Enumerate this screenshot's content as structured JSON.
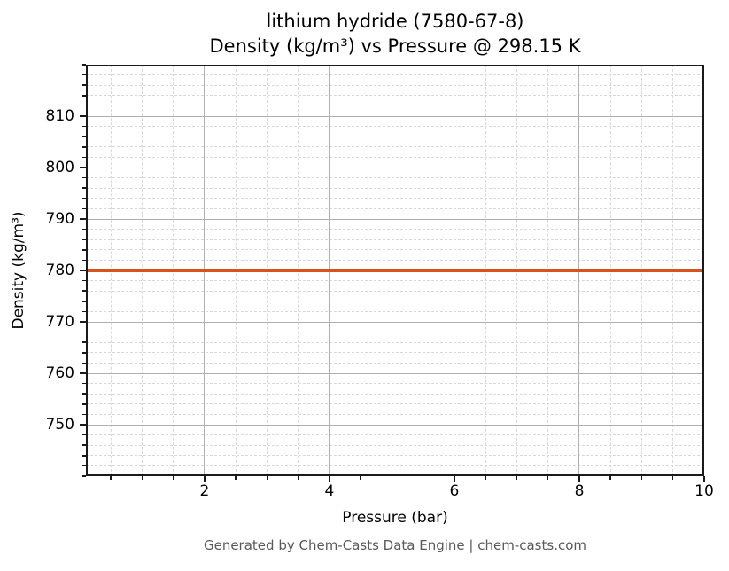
{
  "chart_data": {
    "type": "line",
    "title_line1": "lithium hydride (7580-67-8)",
    "title_line2": "Density (kg/m³) vs Pressure @ 298.15 K",
    "xlabel": "Pressure (bar)",
    "ylabel": "Density (kg/m³)",
    "x_range": [
      0.1,
      10
    ],
    "y_range": [
      740,
      820
    ],
    "x_major_ticks": [
      2,
      4,
      6,
      8,
      10
    ],
    "x_minor_step": 0.5,
    "y_major_ticks": [
      750,
      760,
      770,
      780,
      790,
      800,
      810
    ],
    "y_minor_step": 2,
    "grid": true,
    "legend_position": "none",
    "series": [
      {
        "name": "Density",
        "color": "#d8521c",
        "constant_value": 780,
        "points": [
          [
            0.1,
            780
          ],
          [
            10,
            780
          ]
        ]
      }
    ],
    "style": {
      "grid_major_color": "#b0b0b0",
      "grid_minor_color": "#d8d8d8",
      "spine_color": "#1a1a1a",
      "footer_color": "#595959"
    },
    "footer": "Generated by Chem-Casts Data Engine | chem-casts.com"
  }
}
